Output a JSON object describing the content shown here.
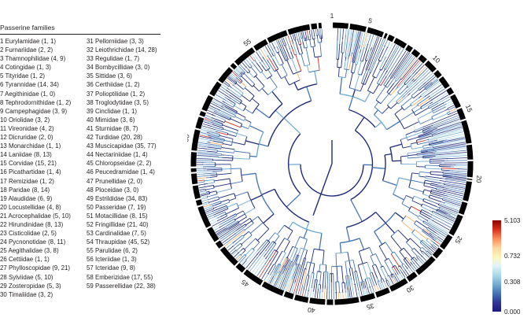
{
  "legend": {
    "title": "Passerine families",
    "column_1": [
      "1 Eurylamidae (1, 1)",
      "2 Furnariidae (2, 2)",
      "3 Thamnophilidae (4, 9)",
      "4 Cotingidae (1, 3)",
      "5 Tityridae (1, 2)",
      "6 Tyrannidae (14, 34)",
      "7 Aegithinidae (1, 0)",
      "8 Tephrodornithidae (1, 2)",
      "9 Campephagidae (3, 9)",
      "10 Oriolidae (3, 2)",
      "11 Vireonidae (4, 2)",
      "12 Dicruridae (2, 0)",
      "13 Monarchidae (1, 1)",
      "14 Laniidae (8, 13)",
      "15 Corvidae (15, 21)",
      "16 Picathartidae (1, 4)",
      "17 Remizidae (1, 2)",
      "18 Paridae (8, 14)",
      "19 Alaudidae (6, 9)",
      "20 Locustellidae (4, 8)",
      "21 Acrocephalidae (5, 10)",
      "22 Hirundinidae (8, 13)",
      "23 Cisticolidae (2, 5)",
      "24 Pycnonotidae (8, 11)",
      "25 Aegithalidae (3, 8)",
      "26 Cettiidae (1, 1)",
      "27 Phylloscopidae (9, 21)",
      "28 Sylviidae (5, 10)",
      "29 Zosteropidae (5, 3)",
      "30 Timaliidae (3, 2)"
    ],
    "column_2": [
      "31 Pellorniidae (3, 3)",
      "32 Leiothrichidae (14, 28)",
      "33 Regulidae (1, 7)",
      "34 Bombycillidae (3, 0)",
      "35 Sittidae (3, 6)",
      "36 Certhiidae (1, 2)",
      "37 Polioptilidae (1, 2)",
      "38 Troglodytidae (3, 5)",
      "39 Cinclidae (1, 1)",
      "40 Mimidae (3, 6)",
      "41 Sturnidae (8, 7)",
      "42 Turdidae (20, 28)",
      "43 Muscicapidae (35, 77)",
      "44 Nectariniidae (1, 4)",
      "45 Chloropseidae (2, 2)",
      "46 Peucedramidae (1, 4)",
      "47 Prunellidae (2, 0)",
      "48 Ploceidae (3, 0)",
      "49 Estrildidae (34, 83)",
      "50 Passeridae (7, 19)",
      "51 Motacillidae (8, 15)",
      "52 Fringillidae (21, 40)",
      "53 Cardinalidae (7, 5)",
      "54 Thraupidae (45, 52)",
      "55 Parulidae (6, 2)",
      "56 Icteriidae (1, 3)",
      "57 Icteridae (9, 8)",
      "58 Emberizidae (17, 55)",
      "59 Passerellidae (22, 38)"
    ]
  },
  "ring_labels": [
    "1",
    "5",
    "10",
    "15",
    "20",
    "25",
    "30",
    "35",
    "40",
    "45",
    "50",
    "55"
  ],
  "color_scale": {
    "labels": [
      "5.103",
      "0.732",
      "0.308",
      "0.000"
    ],
    "stops": [
      "#8b0000",
      "#d7301f",
      "#fc8d59",
      "#fdd49e",
      "#fff7bc",
      "#e0f3f8",
      "#abd9e9",
      "#74add1",
      "#4575b4",
      "#313695",
      "#1a1a7e"
    ]
  },
  "colors": {
    "text": "#231f20",
    "ring": "#000000",
    "branch_dark": "#1f2a7a",
    "branch_mid": "#4575b4",
    "branch_light": "#74add1",
    "branch_pale": "#abd9e9",
    "branch_warm": "#fdae61",
    "branch_hot": "#d7301f"
  }
}
